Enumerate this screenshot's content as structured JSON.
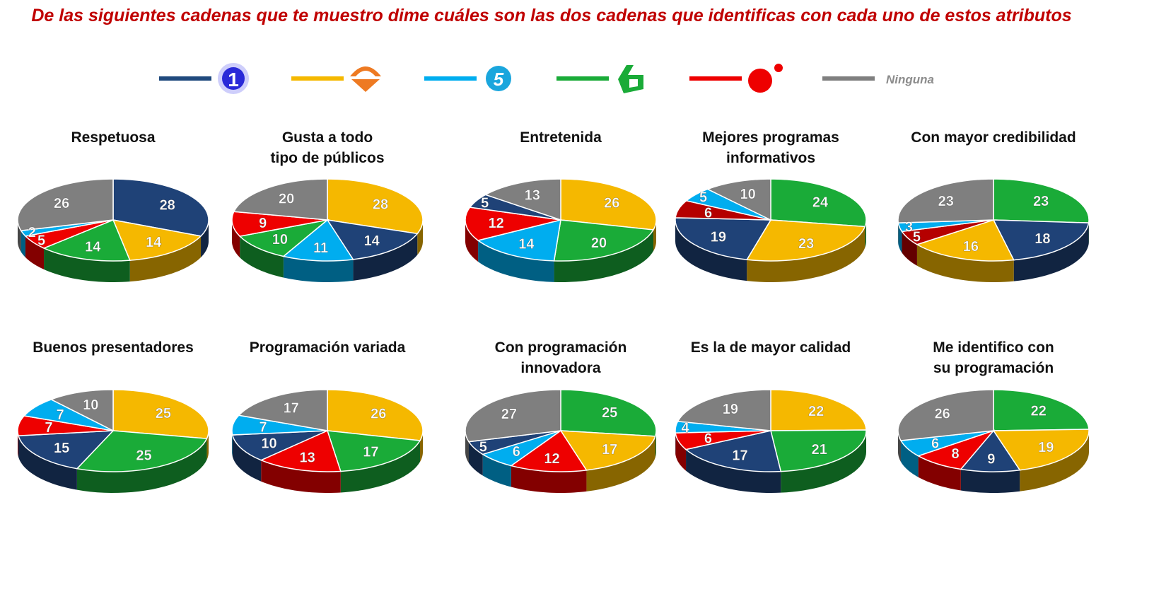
{
  "title": "De las siguientes cadenas que te muestro dime cuáles son las dos cadenas que identificas con cada uno de estos atributos",
  "legend": [
    {
      "channel": "tve-la-1",
      "color": "#1f497d",
      "icon": "la1-logo-icon"
    },
    {
      "channel": "antena-3",
      "color": "#f5b800",
      "icon": "antena3-logo-icon"
    },
    {
      "channel": "telecinco",
      "color": "#00adef",
      "icon": "telecinco-logo-icon"
    },
    {
      "channel": "la-sexta",
      "color": "#1aab38",
      "icon": "lasexta-logo-icon"
    },
    {
      "channel": "cuatro",
      "color": "#ee0000",
      "icon": "cuatro-logo-icon"
    },
    {
      "channel": "ninguna",
      "color": "#7f7f7f",
      "label": "Ninguna"
    }
  ],
  "channel_colors": {
    "navy": "#1f4277",
    "yellow": "#f5b800",
    "cyan": "#00adef",
    "green": "#1aab38",
    "red": "#ee0000",
    "darkred": "#b50000",
    "grey": "#7f7f7f"
  },
  "chart_data": [
    {
      "type": "pie",
      "title": "Respetuosa",
      "slices": [
        {
          "channel": "navy",
          "value": 28
        },
        {
          "channel": "yellow",
          "value": 14
        },
        {
          "channel": "green",
          "value": 14
        },
        {
          "channel": "red",
          "value": 5
        },
        {
          "channel": "cyan",
          "value": 2
        },
        {
          "channel": "grey",
          "value": 26
        }
      ]
    },
    {
      "type": "pie",
      "title": "Gusta a todo\ntipo de públicos",
      "slices": [
        {
          "channel": "yellow",
          "value": 28
        },
        {
          "channel": "navy",
          "value": 14
        },
        {
          "channel": "cyan",
          "value": 11
        },
        {
          "channel": "green",
          "value": 10
        },
        {
          "channel": "red",
          "value": 9
        },
        {
          "channel": "grey",
          "value": 20
        }
      ]
    },
    {
      "type": "pie",
      "title": "Entretenida",
      "slices": [
        {
          "channel": "yellow",
          "value": 26
        },
        {
          "channel": "green",
          "value": 20
        },
        {
          "channel": "cyan",
          "value": 14
        },
        {
          "channel": "red",
          "value": 12
        },
        {
          "channel": "navy",
          "value": 5
        },
        {
          "channel": "grey",
          "value": 13
        }
      ]
    },
    {
      "type": "pie",
      "title": "Mejores programas\ninformativos",
      "slices": [
        {
          "channel": "green",
          "value": 24
        },
        {
          "channel": "yellow",
          "value": 23
        },
        {
          "channel": "navy",
          "value": 19
        },
        {
          "channel": "darkred",
          "value": 6
        },
        {
          "channel": "cyan",
          "value": 5
        },
        {
          "channel": "grey",
          "value": 10
        }
      ]
    },
    {
      "type": "pie",
      "title": "Con mayor credibilidad",
      "slices": [
        {
          "channel": "green",
          "value": 23
        },
        {
          "channel": "navy",
          "value": 18
        },
        {
          "channel": "yellow",
          "value": 16
        },
        {
          "channel": "darkred",
          "value": 5
        },
        {
          "channel": "cyan",
          "value": 3
        },
        {
          "channel": "grey",
          "value": 23
        }
      ]
    },
    {
      "type": "pie",
      "title": "Buenos presentadores",
      "slices": [
        {
          "channel": "yellow",
          "value": 25
        },
        {
          "channel": "green",
          "value": 25
        },
        {
          "channel": "navy",
          "value": 15
        },
        {
          "channel": "red",
          "value": 7
        },
        {
          "channel": "cyan",
          "value": 7
        },
        {
          "channel": "grey",
          "value": 10
        }
      ]
    },
    {
      "type": "pie",
      "title": "Programación variada",
      "slices": [
        {
          "channel": "yellow",
          "value": 26
        },
        {
          "channel": "green",
          "value": 17
        },
        {
          "channel": "red",
          "value": 13
        },
        {
          "channel": "navy",
          "value": 10
        },
        {
          "channel": "cyan",
          "value": 7
        },
        {
          "channel": "grey",
          "value": 17
        }
      ]
    },
    {
      "type": "pie",
      "title": "Con programación\ninnovadora",
      "slices": [
        {
          "channel": "green",
          "value": 25
        },
        {
          "channel": "yellow",
          "value": 17
        },
        {
          "channel": "red",
          "value": 12
        },
        {
          "channel": "cyan",
          "value": 6
        },
        {
          "channel": "navy",
          "value": 5
        },
        {
          "channel": "grey",
          "value": 27
        }
      ]
    },
    {
      "type": "pie",
      "title": "Es la de mayor calidad",
      "slices": [
        {
          "channel": "yellow",
          "value": 22
        },
        {
          "channel": "green",
          "value": 21
        },
        {
          "channel": "navy",
          "value": 17
        },
        {
          "channel": "red",
          "value": 6
        },
        {
          "channel": "cyan",
          "value": 4
        },
        {
          "channel": "grey",
          "value": 19
        }
      ]
    },
    {
      "type": "pie",
      "title": "Me identifico con\nsu programación",
      "slices": [
        {
          "channel": "green",
          "value": 22
        },
        {
          "channel": "yellow",
          "value": 19
        },
        {
          "channel": "navy",
          "value": 9
        },
        {
          "channel": "red",
          "value": 8
        },
        {
          "channel": "cyan",
          "value": 6
        },
        {
          "channel": "grey",
          "value": 26
        }
      ]
    }
  ]
}
